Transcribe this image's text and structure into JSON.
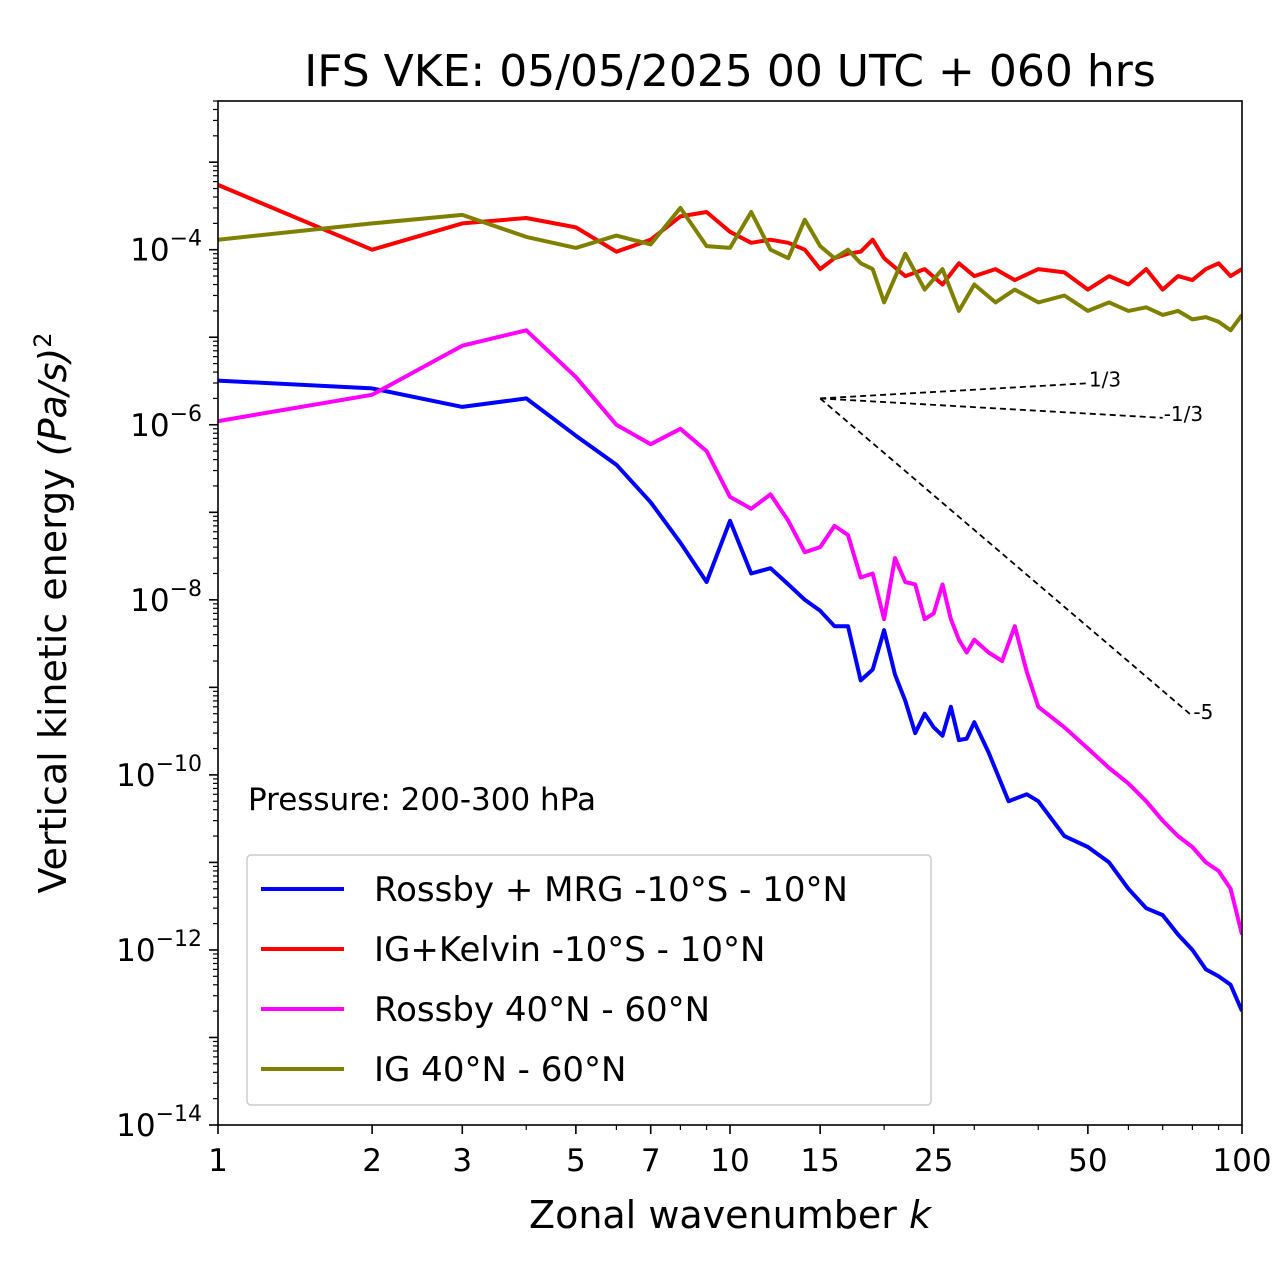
{
  "chart_data": {
    "type": "line",
    "title": "IFS VKE: 05/05/2025 00 UTC + 060 hrs",
    "xlabel": "Zonal wavenumber",
    "xlabel_var": "k",
    "ylabel": "Vertical kinetic energy",
    "ylabel_unit": "(Pa/s)",
    "ylabel_exp": "2",
    "xscale": "log",
    "yscale": "log",
    "xlim": [
      1,
      100
    ],
    "ylim": [
      1e-14,
      0.005
    ],
    "x_ticks": [
      1,
      2,
      3,
      5,
      7,
      10,
      15,
      25,
      50,
      100
    ],
    "x_tick_labels": [
      "1",
      "2",
      "3",
      "5",
      "7",
      "10",
      "15",
      "25",
      "50",
      "100"
    ],
    "y_ticks": [
      {
        "value": 1e-14,
        "base": "10",
        "exp": "−14"
      },
      {
        "value": 1e-12,
        "base": "10",
        "exp": "−12"
      },
      {
        "value": 1e-10,
        "base": "10",
        "exp": "−10"
      },
      {
        "value": 1e-08,
        "base": "10",
        "exp": "−8"
      },
      {
        "value": 1e-06,
        "base": "10",
        "exp": "−6"
      },
      {
        "value": 0.0001,
        "base": "10",
        "exp": "−4"
      }
    ],
    "annotation": "Pressure: 200-300 hPa",
    "legend_position": "lower-left",
    "grid": false,
    "series": [
      {
        "name": "Rossby + MRG -10°S - 10°N",
        "color": "#0000ff",
        "x": [
          1,
          2,
          3,
          4,
          5,
          6,
          7,
          8,
          9,
          10,
          11,
          12,
          13,
          14,
          15,
          16,
          17,
          18,
          19,
          20,
          21,
          22,
          23,
          24,
          25,
          26,
          27,
          28,
          29,
          30,
          32,
          35,
          38,
          40,
          45,
          50,
          55,
          60,
          65,
          70,
          75,
          80,
          85,
          90,
          95,
          100
        ],
        "y": [
          3.2e-06,
          2.6e-06,
          1.6e-06,
          2e-06,
          7.5e-07,
          3.5e-07,
          1.3e-07,
          4.5e-08,
          1.6e-08,
          8e-08,
          2e-08,
          2.3e-08,
          1.5e-08,
          1e-08,
          7.5e-09,
          5e-09,
          5e-09,
          1.2e-09,
          1.6e-09,
          4.5e-09,
          1.4e-09,
          7e-10,
          3e-10,
          5e-10,
          3.5e-10,
          2.8e-10,
          6e-10,
          2.5e-10,
          2.6e-10,
          4e-10,
          1.8e-10,
          5e-11,
          6e-11,
          5e-11,
          2e-11,
          1.5e-11,
          1e-11,
          5e-12,
          3e-12,
          2.5e-12,
          1.5e-12,
          1e-12,
          6e-13,
          5e-13,
          4e-13,
          2e-13
        ]
      },
      {
        "name": "IG+Kelvin -10°S - 10°N",
        "color": "#ff0000",
        "x": [
          1,
          2,
          3,
          4,
          5,
          6,
          7,
          8,
          9,
          10,
          11,
          12,
          13,
          14,
          15,
          16,
          17,
          18,
          19,
          20,
          22,
          24,
          26,
          28,
          30,
          33,
          36,
          40,
          45,
          50,
          55,
          60,
          65,
          70,
          75,
          80,
          85,
          90,
          95,
          100
        ],
        "y": [
          0.00055,
          0.0001,
          0.0002,
          0.00023,
          0.00018,
          9.5e-05,
          0.00013,
          0.00024,
          0.00027,
          0.00016,
          0.00012,
          0.00013,
          0.00012,
          0.0001,
          6e-05,
          8e-05,
          9e-05,
          9.5e-05,
          0.00013,
          8e-05,
          5e-05,
          6e-05,
          4e-05,
          7e-05,
          5e-05,
          6e-05,
          4.5e-05,
          6e-05,
          5.5e-05,
          3.5e-05,
          5e-05,
          4e-05,
          6e-05,
          3.5e-05,
          5e-05,
          4.5e-05,
          6e-05,
          7e-05,
          5e-05,
          6e-05
        ]
      },
      {
        "name": "Rossby 40°N - 60°N",
        "color": "#ff00ff",
        "x": [
          1,
          2,
          3,
          4,
          5,
          6,
          7,
          8,
          9,
          10,
          11,
          12,
          13,
          14,
          15,
          16,
          17,
          18,
          19,
          20,
          21,
          22,
          23,
          24,
          25,
          26,
          27,
          28,
          29,
          30,
          32,
          34,
          36,
          38,
          40,
          45,
          50,
          55,
          60,
          65,
          70,
          75,
          80,
          85,
          90,
          95,
          100
        ],
        "y": [
          1.1e-06,
          2.2e-06,
          8e-06,
          1.2e-05,
          3.5e-06,
          1e-06,
          6e-07,
          9e-07,
          5e-07,
          1.5e-07,
          1.1e-07,
          1.6e-07,
          8e-08,
          3.5e-08,
          4e-08,
          7e-08,
          5.5e-08,
          1.8e-08,
          2e-08,
          6e-09,
          3e-08,
          1.6e-08,
          1.5e-08,
          6e-09,
          7e-09,
          1.5e-08,
          6e-09,
          3.5e-09,
          2.5e-09,
          3.5e-09,
          2.5e-09,
          2e-09,
          5e-09,
          1.5e-09,
          6e-10,
          3.5e-10,
          2e-10,
          1.2e-10,
          8e-11,
          5e-11,
          3e-11,
          2e-11,
          1.5e-11,
          1e-11,
          8e-12,
          5e-12,
          1.5e-12
        ]
      },
      {
        "name": "IG 40°N - 60°N",
        "color": "#808000",
        "x": [
          1,
          2,
          3,
          4,
          5,
          6,
          7,
          8,
          9,
          10,
          11,
          12,
          13,
          14,
          15,
          16,
          17,
          18,
          19,
          20,
          22,
          24,
          26,
          28,
          30,
          33,
          36,
          40,
          45,
          50,
          55,
          60,
          65,
          70,
          75,
          80,
          85,
          90,
          95,
          100
        ],
        "y": [
          0.00013,
          0.0002,
          0.00025,
          0.00014,
          0.000105,
          0.000145,
          0.000115,
          0.0003,
          0.00011,
          0.000105,
          0.00027,
          0.0001,
          8e-05,
          0.00022,
          0.00011,
          8e-05,
          0.0001,
          7e-05,
          6e-05,
          2.5e-05,
          9e-05,
          3.5e-05,
          6e-05,
          2e-05,
          4e-05,
          2.5e-05,
          3.5e-05,
          2.5e-05,
          3e-05,
          2e-05,
          2.5e-05,
          2e-05,
          2.2e-05,
          1.8e-05,
          2e-05,
          1.6e-05,
          1.7e-05,
          1.5e-05,
          1.2e-05,
          1.8e-05
        ]
      }
    ],
    "reference_slopes": [
      {
        "label": "1/3",
        "x": [
          15,
          50
        ],
        "y": [
          2e-06,
          2.98e-06
        ]
      },
      {
        "label": "-1/3",
        "x": [
          15,
          70
        ],
        "y": [
          2e-06,
          1.2e-06
        ]
      },
      {
        "label": "-5",
        "x": [
          15,
          80
        ],
        "y": [
          2e-06,
          4.7e-10
        ]
      }
    ]
  }
}
